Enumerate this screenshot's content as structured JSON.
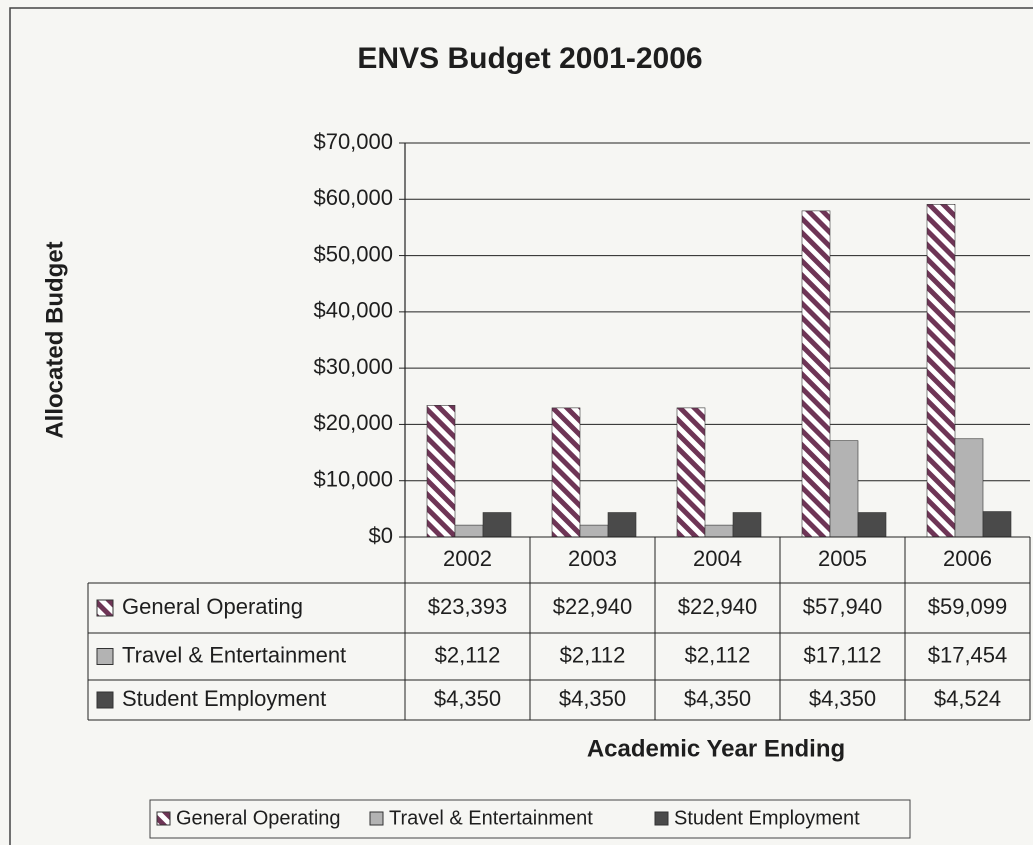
{
  "chart_data": {
    "type": "bar",
    "title": "ENVS Budget 2001-2006",
    "y_label": "Allocated Budget",
    "x_label": "Academic Year Ending",
    "categories": [
      "2002",
      "2003",
      "2004",
      "2005",
      "2006"
    ],
    "series": [
      {
        "name": "General Operating",
        "color": "#6e3556",
        "hatch": true,
        "values": [
          23393,
          22940,
          22940,
          57940,
          59099
        ],
        "value_labels": [
          "$23,393",
          "$22,940",
          "$22,940",
          "$57,940",
          "$59,099"
        ]
      },
      {
        "name": "Travel & Entertainment",
        "color": "#b3b3b3",
        "values": [
          2112,
          2112,
          2112,
          17112,
          17454
        ],
        "value_labels": [
          "$2,112",
          "$2,112",
          "$2,112",
          "$17,112",
          "$17,454"
        ]
      },
      {
        "name": "Student Employment",
        "color": "#4a4a4a",
        "values": [
          4350,
          4350,
          4350,
          4350,
          4524
        ],
        "value_labels": [
          "$4,350",
          "$4,350",
          "$4,350",
          "$4,350",
          "$4,524"
        ]
      }
    ],
    "ylim": [
      0,
      70000
    ],
    "yticks": [
      {
        "value": 0,
        "label": "$0"
      },
      {
        "value": 10000,
        "label": "$10,000"
      },
      {
        "value": 20000,
        "label": "$20,000"
      },
      {
        "value": 30000,
        "label": "$30,000"
      },
      {
        "value": 40000,
        "label": "$40,000"
      },
      {
        "value": 50000,
        "label": "$50,000"
      },
      {
        "value": 60000,
        "label": "$60,000"
      },
      {
        "value": 70000,
        "label": "$70,000"
      }
    ],
    "grid": true,
    "legend": "bottom"
  }
}
